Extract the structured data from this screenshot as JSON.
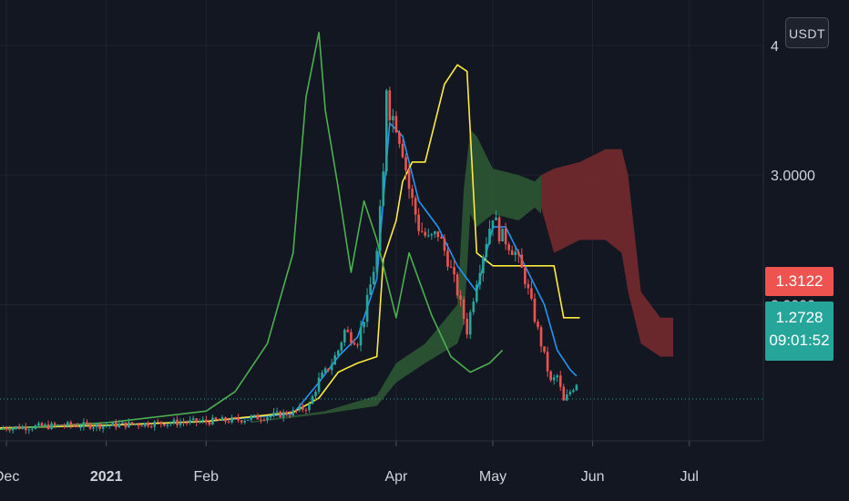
{
  "currency": "USDT",
  "y_axis": {
    "ticks": [
      {
        "value": 2.0,
        "label": "2.0000"
      },
      {
        "value": 3.0,
        "label": "3.0000"
      },
      {
        "value": 4.0,
        "label": "4"
      }
    ]
  },
  "x_axis": {
    "ticks": [
      {
        "date": "2020-12-01",
        "label": "Dec",
        "bold": false
      },
      {
        "date": "2021-01-01",
        "label": "2021",
        "bold": true
      },
      {
        "date": "2021-02-01",
        "label": "Feb",
        "bold": false
      },
      {
        "date": "2021-04-01",
        "label": "Apr",
        "bold": false
      },
      {
        "date": "2021-05-01",
        "label": "May",
        "bold": false
      },
      {
        "date": "2021-06-01",
        "label": "Jun",
        "bold": false
      },
      {
        "date": "2021-07-01",
        "label": "Jul",
        "bold": false
      }
    ]
  },
  "price_tags": {
    "upper": "1.3122",
    "last": "1.2728",
    "countdown": "09:01:52"
  },
  "colors": {
    "background": "#131722",
    "up": "#26a69a",
    "down": "#ef5350",
    "line_blue": "#2196f3",
    "line_yellow": "#ffeb3b",
    "line_green": "#4caf50",
    "cloud_green": "#2e5a34",
    "cloud_red": "#7a2a2e",
    "grid": "#1f2330",
    "axis_text": "#d1d4dc"
  },
  "chart_data": {
    "type": "line",
    "title": "",
    "xlabel": "",
    "ylabel": "",
    "ylim": [
      0.95,
      4.35
    ],
    "xlim": [
      "2020-11-29",
      "2021-07-24"
    ],
    "last_price": 1.2728,
    "upper_price": 1.3122,
    "price_close": {
      "x": [
        "2020-11-29",
        "2020-12-10",
        "2020-12-20",
        "2021-01-01",
        "2021-01-10",
        "2021-01-20",
        "2021-02-01",
        "2021-02-10",
        "2021-02-20",
        "2021-02-28",
        "2021-03-05",
        "2021-03-08",
        "2021-03-10",
        "2021-03-12",
        "2021-03-14",
        "2021-03-16",
        "2021-03-18",
        "2021-03-20",
        "2021-03-22",
        "2021-03-24",
        "2021-03-26",
        "2021-03-28",
        "2021-03-29",
        "2021-03-30",
        "2021-04-01",
        "2021-04-03",
        "2021-04-05",
        "2021-04-08",
        "2021-04-11",
        "2021-04-14",
        "2021-04-17",
        "2021-04-20",
        "2021-04-23",
        "2021-04-26",
        "2021-04-29",
        "2021-05-01",
        "2021-05-03",
        "2021-05-05",
        "2021-05-08",
        "2021-05-11",
        "2021-05-14",
        "2021-05-17",
        "2021-05-19",
        "2021-05-21",
        "2021-05-23",
        "2021-05-25",
        "2021-05-27"
      ],
      "values": [
        1.05,
        1.06,
        1.07,
        1.07,
        1.08,
        1.09,
        1.1,
        1.11,
        1.14,
        1.17,
        1.22,
        1.42,
        1.48,
        1.55,
        1.65,
        1.8,
        1.75,
        1.72,
        1.9,
        2.15,
        2.4,
        3.0,
        3.7,
        3.5,
        3.4,
        3.2,
        2.9,
        2.6,
        2.5,
        2.55,
        2.35,
        2.1,
        1.8,
        2.2,
        2.5,
        2.7,
        2.55,
        2.5,
        2.4,
        2.2,
        1.9,
        1.6,
        1.4,
        1.45,
        1.25,
        1.33,
        1.4
      ]
    },
    "series": [
      {
        "color_key": "line_blue",
        "x": [
          "2020-11-29",
          "2021-01-01",
          "2021-02-01",
          "2021-02-28",
          "2021-03-08",
          "2021-03-14",
          "2021-03-20",
          "2021-03-26",
          "2021-03-30",
          "2021-04-03",
          "2021-04-08",
          "2021-04-14",
          "2021-04-20",
          "2021-04-26",
          "2021-05-01",
          "2021-05-05",
          "2021-05-11",
          "2021-05-17",
          "2021-05-21",
          "2021-05-25",
          "2021-05-27"
        ],
        "values": [
          1.05,
          1.07,
          1.1,
          1.16,
          1.4,
          1.6,
          1.75,
          2.2,
          3.4,
          3.3,
          2.8,
          2.6,
          2.3,
          2.1,
          2.6,
          2.6,
          2.3,
          2.0,
          1.65,
          1.5,
          1.45
        ]
      },
      {
        "color_key": "line_yellow",
        "x": [
          "2020-11-29",
          "2021-01-01",
          "2021-02-01",
          "2021-02-28",
          "2021-03-08",
          "2021-03-14",
          "2021-03-20",
          "2021-03-26",
          "2021-03-28",
          "2021-04-01",
          "2021-04-03",
          "2021-04-06",
          "2021-04-10",
          "2021-04-16",
          "2021-04-20",
          "2021-04-23",
          "2021-04-26",
          "2021-05-01",
          "2021-05-20",
          "2021-05-23",
          "2021-05-28"
        ],
        "values": [
          1.05,
          1.07,
          1.1,
          1.17,
          1.28,
          1.48,
          1.55,
          1.6,
          2.35,
          2.65,
          2.95,
          3.1,
          3.1,
          3.7,
          3.85,
          3.8,
          2.4,
          2.3,
          2.3,
          1.9,
          1.9
        ]
      },
      {
        "color_key": "line_green",
        "x": [
          "2020-11-29",
          "2021-01-01",
          "2021-02-01",
          "2021-02-10",
          "2021-02-20",
          "2021-02-28",
          "2021-03-04",
          "2021-03-08",
          "2021-03-10",
          "2021-03-14",
          "2021-03-18",
          "2021-03-22",
          "2021-03-26",
          "2021-04-01",
          "2021-04-05",
          "2021-04-12",
          "2021-04-18",
          "2021-04-24",
          "2021-04-30",
          "2021-05-04"
        ],
        "values": [
          1.04,
          1.09,
          1.18,
          1.33,
          1.7,
          2.4,
          3.6,
          4.1,
          3.5,
          2.9,
          2.25,
          2.8,
          2.5,
          1.9,
          2.4,
          1.92,
          1.6,
          1.48,
          1.55,
          1.65
        ]
      }
    ],
    "ichimoku_cloud": [
      {
        "color_key": "cloud_green",
        "x": [
          "2021-02-15",
          "2021-03-10",
          "2021-03-26",
          "2021-04-01",
          "2021-04-10",
          "2021-04-20",
          "2021-04-22",
          "2021-04-24",
          "2021-04-26",
          "2021-05-01",
          "2021-05-09",
          "2021-05-14",
          "2021-05-16"
        ],
        "upper": [
          1.1,
          1.18,
          1.3,
          1.55,
          1.7,
          2.0,
          2.9,
          3.35,
          3.3,
          3.05,
          3.0,
          2.95,
          3.0
        ],
        "lower": [
          1.09,
          1.16,
          1.22,
          1.4,
          1.55,
          1.7,
          1.85,
          2.7,
          2.6,
          2.7,
          2.65,
          2.75,
          2.7
        ]
      },
      {
        "color_key": "cloud_red",
        "x": [
          "2021-05-16",
          "2021-05-20",
          "2021-05-28",
          "2021-06-05",
          "2021-06-10",
          "2021-06-12",
          "2021-06-16",
          "2021-06-22",
          "2021-06-26"
        ],
        "upper": [
          3.0,
          3.05,
          3.1,
          3.2,
          3.2,
          3.0,
          2.1,
          1.9,
          1.9
        ],
        "lower": [
          2.75,
          2.4,
          2.5,
          2.5,
          2.4,
          2.1,
          1.7,
          1.6,
          1.6
        ]
      }
    ]
  }
}
